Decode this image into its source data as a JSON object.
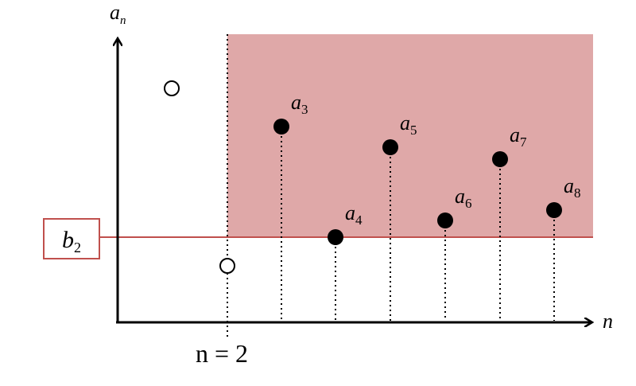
{
  "y_axis_label": {
    "base": "a",
    "sub": "n"
  },
  "x_axis_label": "n",
  "marker_label": "n = 2",
  "bound_label": {
    "base": "b",
    "sub": "2"
  },
  "points": [
    {
      "base": "a",
      "sub": "3"
    },
    {
      "base": "a",
      "sub": "4"
    },
    {
      "base": "a",
      "sub": "5"
    },
    {
      "base": "a",
      "sub": "6"
    },
    {
      "base": "a",
      "sub": "7"
    },
    {
      "base": "a",
      "sub": "8"
    }
  ]
}
